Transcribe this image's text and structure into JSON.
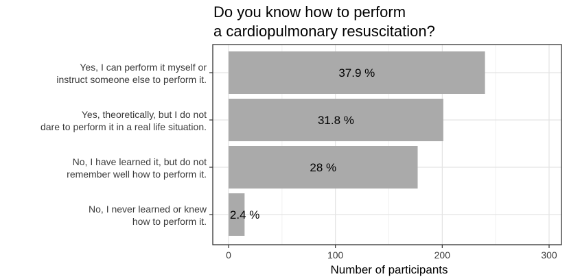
{
  "chart_data": {
    "type": "bar",
    "orientation": "horizontal",
    "title": "Do you know how to perform\na cardiopulmonary resuscitation?",
    "xlabel": "Number of participants",
    "ylabel": "",
    "xlim": [
      0,
      310
    ],
    "xticks": [
      0,
      100,
      200,
      300
    ],
    "grid": true,
    "bar_color": "#aaaaaa",
    "categories": [
      [
        "Yes, I can perform it myself or",
        "instruct someone else to perform it."
      ],
      [
        "Yes, theoretically, but I do not",
        "dare to perform it in a real life situation."
      ],
      [
        "No, I have learned it, but do not",
        "remember well how to perform it."
      ],
      [
        "No, I never learned or knew",
        "how to perform it."
      ]
    ],
    "values": [
      240,
      201,
      177,
      15
    ],
    "data_labels": [
      "37.9 %",
      "31.8 %",
      "28 %",
      "2.4 %"
    ]
  }
}
